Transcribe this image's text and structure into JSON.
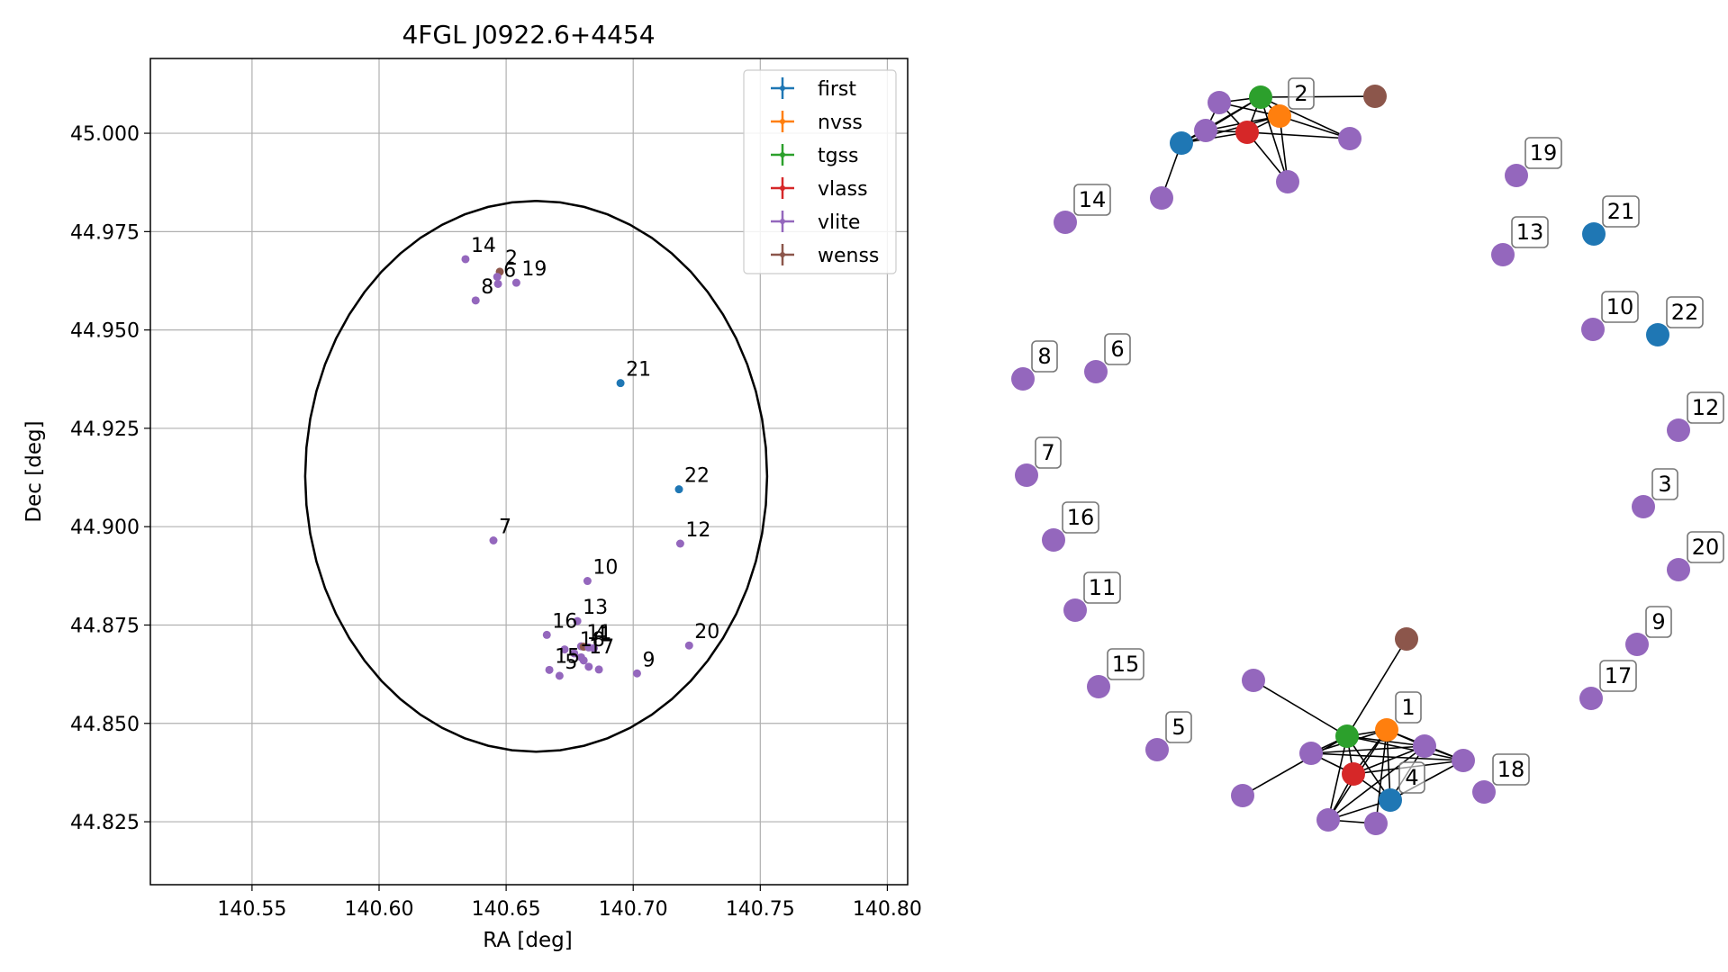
{
  "chart_data": [
    {
      "type": "scatter",
      "title": "4FGL J0922.6+4454",
      "xlabel": "RA [deg]",
      "ylabel": "Dec [deg]",
      "xlim": [
        140.51,
        140.808
      ],
      "ylim": [
        44.809,
        45.019
      ],
      "xticks": [
        "140.55",
        "140.60",
        "140.65",
        "140.70",
        "140.75",
        "140.80"
      ],
      "yticks": [
        "44.825",
        "44.850",
        "44.875",
        "44.900",
        "44.925",
        "44.950",
        "44.975",
        "45.000"
      ],
      "grid": true,
      "legend_position": "top-right",
      "ellipse": {
        "center": [
          140.6618,
          44.9128
        ],
        "semi_axis_ra": 0.0909,
        "semi_axis_dec": 0.07
      },
      "series": [
        {
          "name": "first",
          "color": "#1f77b4"
        },
        {
          "name": "nvss",
          "color": "#ff7f0e"
        },
        {
          "name": "tgss",
          "color": "#2ca02c"
        },
        {
          "name": "vlass",
          "color": "#d62728"
        },
        {
          "name": "vlite",
          "color": "#9467bd"
        },
        {
          "name": "wenss",
          "color": "#8c564b"
        }
      ],
      "points": [
        {
          "ra": 140.634,
          "dec": 44.968,
          "survey": "vlite",
          "label": "14"
        },
        {
          "ra": 140.6475,
          "dec": 44.9648,
          "survey": "wenss",
          "label": "2"
        },
        {
          "ra": 140.6465,
          "dec": 44.9635,
          "survey": "vlite",
          "label": ""
        },
        {
          "ra": 140.6468,
          "dec": 44.9617,
          "survey": "vlite",
          "label": "6"
        },
        {
          "ra": 140.654,
          "dec": 44.962,
          "survey": "vlite",
          "label": "19"
        },
        {
          "ra": 140.638,
          "dec": 44.9575,
          "survey": "vlite",
          "label": "8"
        },
        {
          "ra": 140.695,
          "dec": 44.9365,
          "survey": "first",
          "label": "21"
        },
        {
          "ra": 140.718,
          "dec": 44.9095,
          "survey": "first",
          "label": "22"
        },
        {
          "ra": 140.645,
          "dec": 44.8965,
          "survey": "vlite",
          "label": "7"
        },
        {
          "ra": 140.7185,
          "dec": 44.8957,
          "survey": "vlite",
          "label": "12"
        },
        {
          "ra": 140.682,
          "dec": 44.8862,
          "survey": "vlite",
          "label": "10"
        },
        {
          "ra": 140.678,
          "dec": 44.876,
          "survey": "vlite",
          "label": "13"
        },
        {
          "ra": 140.666,
          "dec": 44.8725,
          "survey": "vlite",
          "label": "16"
        },
        {
          "ra": 140.722,
          "dec": 44.8698,
          "survey": "vlite",
          "label": "20"
        },
        {
          "ra": 140.6795,
          "dec": 44.8696,
          "survey": "vlite",
          "label": "11"
        },
        {
          "ra": 140.6805,
          "dec": 44.8695,
          "survey": "wenss",
          "label": ""
        },
        {
          "ra": 140.6825,
          "dec": 44.8693,
          "survey": "vlite",
          "label": "4"
        },
        {
          "ra": 140.6845,
          "dec": 44.8691,
          "survey": "vlite",
          "label": "1"
        },
        {
          "ra": 140.673,
          "dec": 44.8688,
          "survey": "vlite",
          "label": ""
        },
        {
          "ra": 140.6768,
          "dec": 44.8678,
          "survey": "vlite",
          "label": "18"
        },
        {
          "ra": 140.6795,
          "dec": 44.8668,
          "survey": "vlite",
          "label": ""
        },
        {
          "ra": 140.6805,
          "dec": 44.866,
          "survey": "vlite",
          "label": "17"
        },
        {
          "ra": 140.667,
          "dec": 44.8636,
          "survey": "vlite",
          "label": "15"
        },
        {
          "ra": 140.6825,
          "dec": 44.8644,
          "survey": "vlite",
          "label": ""
        },
        {
          "ra": 140.6865,
          "dec": 44.8637,
          "survey": "vlite",
          "label": ""
        },
        {
          "ra": 140.671,
          "dec": 44.8621,
          "survey": "vlite",
          "label": "5"
        },
        {
          "ra": 140.7015,
          "dec": 44.8627,
          "survey": "vlite",
          "label": "9"
        }
      ]
    },
    {
      "type": "network",
      "description_source": "graph layout of matched sources",
      "nodes": [
        {
          "id": "a1",
          "survey": "vlite",
          "label": ""
        },
        {
          "id": "a2",
          "survey": "tgss",
          "label": ""
        },
        {
          "id": "a3",
          "survey": "wenss",
          "label": ""
        },
        {
          "id": "a4",
          "survey": "vlite",
          "label": ""
        },
        {
          "id": "a5",
          "survey": "nvss",
          "label": "2"
        },
        {
          "id": "a6",
          "survey": "vlass",
          "label": ""
        },
        {
          "id": "a7",
          "survey": "first",
          "label": ""
        },
        {
          "id": "a8",
          "survey": "vlite",
          "label": ""
        },
        {
          "id": "a9",
          "survey": "vlite",
          "label": ""
        },
        {
          "id": "a10",
          "survey": "vlite",
          "label": ""
        },
        {
          "id": "n19",
          "survey": "vlite",
          "label": "19"
        },
        {
          "id": "n14",
          "survey": "vlite",
          "label": "14"
        },
        {
          "id": "n13",
          "survey": "vlite",
          "label": "13"
        },
        {
          "id": "n21",
          "survey": "first",
          "label": "21"
        },
        {
          "id": "n10",
          "survey": "vlite",
          "label": "10"
        },
        {
          "id": "n22",
          "survey": "first",
          "label": "22"
        },
        {
          "id": "n8",
          "survey": "vlite",
          "label": "8"
        },
        {
          "id": "n6",
          "survey": "vlite",
          "label": "6"
        },
        {
          "id": "n12",
          "survey": "vlite",
          "label": "12"
        },
        {
          "id": "n7",
          "survey": "vlite",
          "label": "7"
        },
        {
          "id": "n3",
          "survey": "vlite",
          "label": "3"
        },
        {
          "id": "n16",
          "survey": "vlite",
          "label": "16"
        },
        {
          "id": "n20",
          "survey": "vlite",
          "label": "20"
        },
        {
          "id": "n11",
          "survey": "vlite",
          "label": "11"
        },
        {
          "id": "n9",
          "survey": "vlite",
          "label": "9"
        },
        {
          "id": "n15",
          "survey": "vlite",
          "label": "15"
        },
        {
          "id": "n17",
          "survey": "vlite",
          "label": "17"
        },
        {
          "id": "n5",
          "survey": "vlite",
          "label": "5"
        },
        {
          "id": "b1",
          "survey": "wenss",
          "label": ""
        },
        {
          "id": "b2",
          "survey": "vlite",
          "label": ""
        },
        {
          "id": "b3",
          "survey": "tgss",
          "label": ""
        },
        {
          "id": "b4",
          "survey": "nvss",
          "label": "1"
        },
        {
          "id": "b5",
          "survey": "vlite",
          "label": ""
        },
        {
          "id": "b6",
          "survey": "vlite",
          "label": ""
        },
        {
          "id": "b7",
          "survey": "vlite",
          "label": ""
        },
        {
          "id": "b8",
          "survey": "vlass",
          "label": ""
        },
        {
          "id": "b9",
          "survey": "first",
          "label": "4"
        },
        {
          "id": "b10",
          "survey": "vlite",
          "label": ""
        },
        {
          "id": "b11",
          "survey": "vlite",
          "label": ""
        },
        {
          "id": "b12",
          "survey": "vlite",
          "label": ""
        },
        {
          "id": "n18",
          "survey": "vlite",
          "label": "18"
        }
      ],
      "edges": [
        [
          "a2",
          "a3"
        ],
        [
          "a2",
          "a1"
        ],
        [
          "a2",
          "a4"
        ],
        [
          "a2",
          "a7"
        ],
        [
          "a2",
          "a6"
        ],
        [
          "a2",
          "a5"
        ],
        [
          "a2",
          "a8"
        ],
        [
          "a2",
          "a9"
        ],
        [
          "a1",
          "a6"
        ],
        [
          "a1",
          "a5"
        ],
        [
          "a1",
          "a4"
        ],
        [
          "a4",
          "a6"
        ],
        [
          "a4",
          "a7"
        ],
        [
          "a4",
          "a5"
        ],
        [
          "a6",
          "a5"
        ],
        [
          "a6",
          "a7"
        ],
        [
          "a6",
          "a8"
        ],
        [
          "a6",
          "a9"
        ],
        [
          "a5",
          "a8"
        ],
        [
          "a5",
          "a9"
        ],
        [
          "a5",
          "a7"
        ],
        [
          "a7",
          "a10"
        ],
        [
          "b1",
          "b3"
        ],
        [
          "b2",
          "b3"
        ],
        [
          "b3",
          "b4"
        ],
        [
          "b3",
          "b8"
        ],
        [
          "b3",
          "b5"
        ],
        [
          "b3",
          "b10"
        ],
        [
          "b3",
          "b6"
        ],
        [
          "b3",
          "b9"
        ],
        [
          "b3",
          "b7"
        ],
        [
          "b3",
          "b11"
        ],
        [
          "b4",
          "b8"
        ],
        [
          "b4",
          "b5"
        ],
        [
          "b4",
          "b6"
        ],
        [
          "b4",
          "b9"
        ],
        [
          "b4",
          "b7"
        ],
        [
          "b4",
          "b11"
        ],
        [
          "b4",
          "b12"
        ],
        [
          "b8",
          "b5"
        ],
        [
          "b8",
          "b6"
        ],
        [
          "b8",
          "b9"
        ],
        [
          "b8",
          "b7"
        ],
        [
          "b8",
          "b11"
        ],
        [
          "b5",
          "b6"
        ],
        [
          "b5",
          "b7"
        ],
        [
          "b6",
          "b7"
        ],
        [
          "b9",
          "b11"
        ],
        [
          "b9",
          "b7"
        ],
        [
          "b11",
          "b12"
        ],
        [
          "b6",
          "b9"
        ],
        [
          "b6",
          "b11"
        ]
      ]
    }
  ]
}
